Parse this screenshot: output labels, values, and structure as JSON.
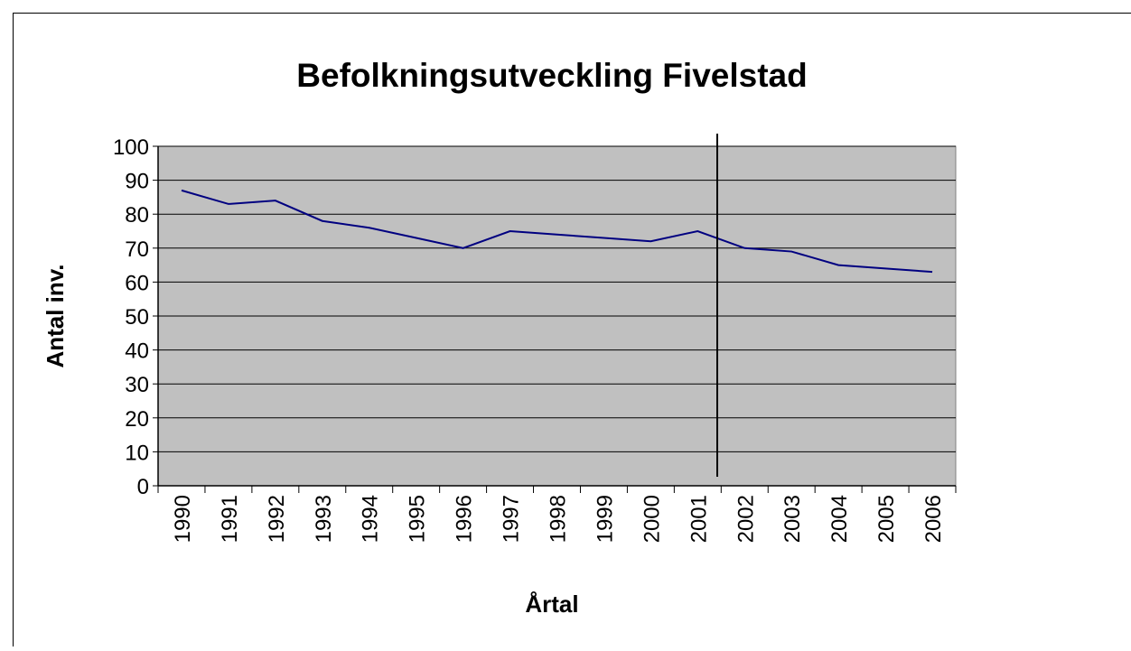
{
  "chart_data": {
    "type": "line",
    "title": "Befolkningsutveckling Fivelstad",
    "x_label": "Årtal",
    "y_label": "Antal inv.",
    "categories": [
      "1990",
      "1991",
      "1992",
      "1993",
      "1994",
      "1995",
      "1996",
      "1997",
      "1998",
      "1999",
      "2000",
      "2001",
      "2002",
      "2003",
      "2004",
      "2005",
      "2006"
    ],
    "series": [
      {
        "name": "Antal inv.",
        "color": "#000080",
        "values": [
          87,
          83,
          84,
          78,
          76,
          73,
          70,
          75,
          74,
          73,
          72,
          75,
          70,
          69,
          65,
          64,
          63
        ]
      }
    ],
    "ylim": [
      0,
      100
    ],
    "yticks": [
      0,
      10,
      20,
      30,
      40,
      50,
      60,
      70,
      80,
      90,
      100
    ],
    "grid": true,
    "legend": false
  }
}
